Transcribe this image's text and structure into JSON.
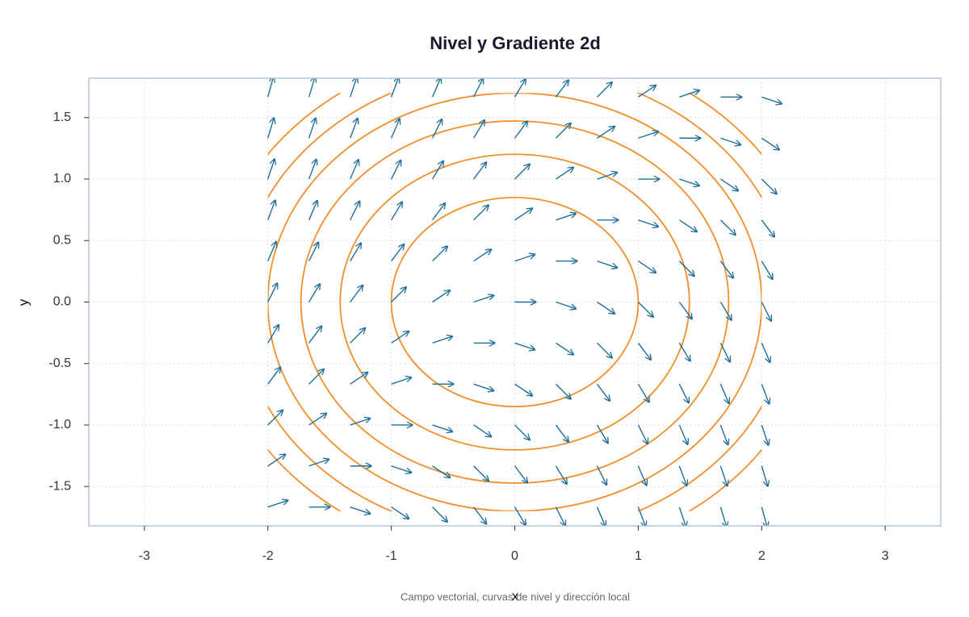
{
  "chart_data": {
    "type": "vector_field",
    "title": "Nivel y Gradiente 2d",
    "caption": "Campo vectorial, curvas de nivel y dirección local",
    "xlabel": "x",
    "ylabel": "y",
    "xlim": [
      -3.45,
      3.45
    ],
    "ylim": [
      -1.82,
      1.82
    ],
    "xticks": [
      -3,
      -2,
      -1,
      0,
      1,
      2,
      3
    ],
    "yticks": [
      -1.5,
      {
        "value": -1,
        "label": "-1.0"
      },
      -0.5,
      {
        "value": 0,
        "label": "0.0"
      },
      0.5,
      {
        "value": 1,
        "label": "1.0"
      },
      1.5
    ],
    "grid": true,
    "field_x": [
      -2,
      -1.667,
      -1.333,
      -1,
      -0.667,
      -0.333,
      0,
      0.333,
      0.667,
      1,
      1.333,
      1.667,
      2
    ],
    "field_y": [
      -1.667,
      -1.333,
      -1,
      -0.667,
      -0.333,
      0,
      0.333,
      0.667,
      1,
      1.333,
      1.667
    ],
    "arrow_color": "#1f6f99",
    "contour_levels": [
      1,
      2,
      3,
      4,
      5,
      6
    ],
    "contour_color": "#f28e2b"
  }
}
